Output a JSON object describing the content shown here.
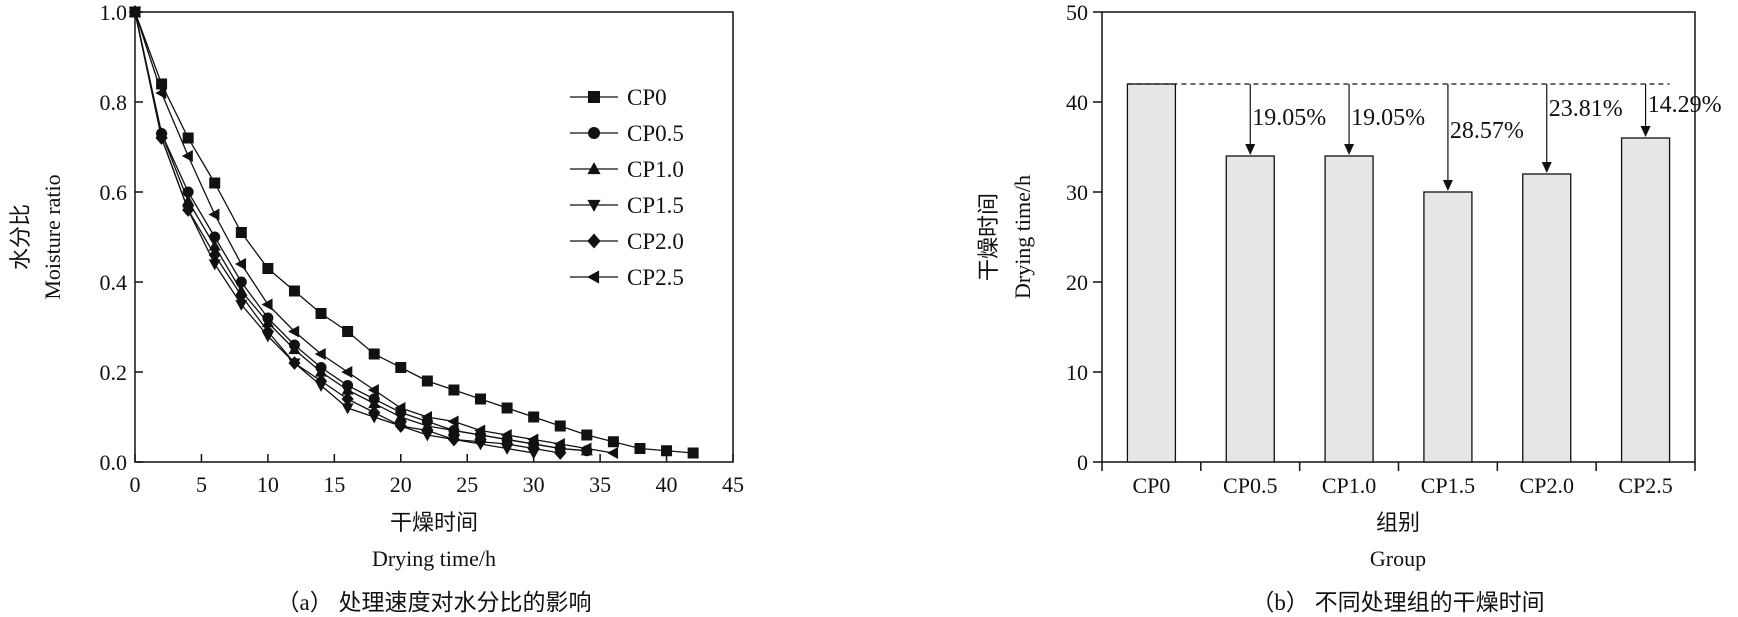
{
  "chart_data": [
    {
      "type": "line",
      "caption": "（a） 处理速度对水分比的影响",
      "xlabel_cn": "干燥时间",
      "xlabel_en": "Drying time/h",
      "ylabel_cn": "水分比",
      "ylabel_en": "Moisture ratio",
      "xlim": [
        0,
        45
      ],
      "ylim": [
        0,
        1.0
      ],
      "xticks": [
        "0",
        "5",
        "10",
        "15",
        "20",
        "25",
        "30",
        "35",
        "40",
        "45"
      ],
      "yticks": [
        "0.0",
        "0.2",
        "0.4",
        "0.6",
        "0.8",
        "1.0"
      ],
      "legend_position": "top-right",
      "series": [
        {
          "name": "CP0",
          "marker": "square",
          "x": [
            0,
            2,
            4,
            6,
            8,
            10,
            12,
            14,
            16,
            18,
            20,
            22,
            24,
            26,
            28,
            30,
            32,
            34,
            36,
            38,
            40,
            42
          ],
          "y": [
            1.0,
            0.84,
            0.72,
            0.62,
            0.51,
            0.43,
            0.38,
            0.33,
            0.29,
            0.24,
            0.21,
            0.18,
            0.16,
            0.14,
            0.12,
            0.1,
            0.08,
            0.06,
            0.045,
            0.03,
            0.025,
            0.02
          ]
        },
        {
          "name": "CP0.5",
          "marker": "circle",
          "x": [
            0,
            2,
            4,
            6,
            8,
            10,
            12,
            14,
            16,
            18,
            20,
            22,
            24,
            26,
            28,
            30,
            32,
            34
          ],
          "y": [
            1.0,
            0.73,
            0.6,
            0.5,
            0.4,
            0.32,
            0.26,
            0.21,
            0.17,
            0.14,
            0.11,
            0.09,
            0.07,
            0.06,
            0.05,
            0.04,
            0.03,
            0.025
          ]
        },
        {
          "name": "CP1.0",
          "marker": "triangle-up",
          "x": [
            0,
            2,
            4,
            6,
            8,
            10,
            12,
            14,
            16,
            18,
            20,
            22,
            24,
            26,
            28,
            30,
            32,
            34
          ],
          "y": [
            1.0,
            0.73,
            0.58,
            0.48,
            0.38,
            0.31,
            0.25,
            0.2,
            0.16,
            0.13,
            0.1,
            0.08,
            0.07,
            0.06,
            0.05,
            0.04,
            0.03,
            0.025
          ]
        },
        {
          "name": "CP1.5",
          "marker": "triangle-down",
          "x": [
            0,
            2,
            4,
            6,
            8,
            10,
            12,
            14,
            16,
            18,
            20,
            22,
            24,
            26,
            28,
            30
          ],
          "y": [
            1.0,
            0.72,
            0.56,
            0.44,
            0.35,
            0.28,
            0.22,
            0.17,
            0.12,
            0.1,
            0.08,
            0.06,
            0.05,
            0.04,
            0.03,
            0.02
          ]
        },
        {
          "name": "CP2.0",
          "marker": "diamond",
          "x": [
            0,
            2,
            4,
            6,
            8,
            10,
            12,
            14,
            16,
            18,
            20,
            22,
            24,
            26,
            28,
            30,
            32
          ],
          "y": [
            1.0,
            0.72,
            0.56,
            0.46,
            0.37,
            0.29,
            0.22,
            0.18,
            0.14,
            0.11,
            0.08,
            0.07,
            0.05,
            0.045,
            0.04,
            0.03,
            0.02
          ]
        },
        {
          "name": "CP2.5",
          "marker": "triangle-left",
          "x": [
            0,
            2,
            4,
            6,
            8,
            10,
            12,
            14,
            16,
            18,
            20,
            22,
            24,
            26,
            28,
            30,
            32,
            34,
            36
          ],
          "y": [
            1.0,
            0.82,
            0.68,
            0.55,
            0.44,
            0.35,
            0.29,
            0.24,
            0.2,
            0.16,
            0.12,
            0.1,
            0.09,
            0.07,
            0.06,
            0.05,
            0.04,
            0.03,
            0.02
          ]
        }
      ]
    },
    {
      "type": "bar",
      "caption": "（b） 不同处理组的干燥时间",
      "xlabel_cn": "组别",
      "xlabel_en": "Group",
      "ylabel_cn": "干燥时间",
      "ylabel_en": "Drying time/h",
      "ylim": [
        0,
        50
      ],
      "yticks": [
        "0",
        "10",
        "20",
        "30",
        "40",
        "50"
      ],
      "categories": [
        "CP0",
        "CP0.5",
        "CP1.0",
        "CP1.5",
        "CP2.0",
        "CP2.5"
      ],
      "values": [
        42,
        34,
        34,
        30,
        32,
        36
      ],
      "reference_value": 42,
      "annotations": [
        "",
        "19.05%",
        "19.05%",
        "28.57%",
        "23.81%",
        "14.29%"
      ],
      "bar_color": "#e6e6e6"
    }
  ]
}
